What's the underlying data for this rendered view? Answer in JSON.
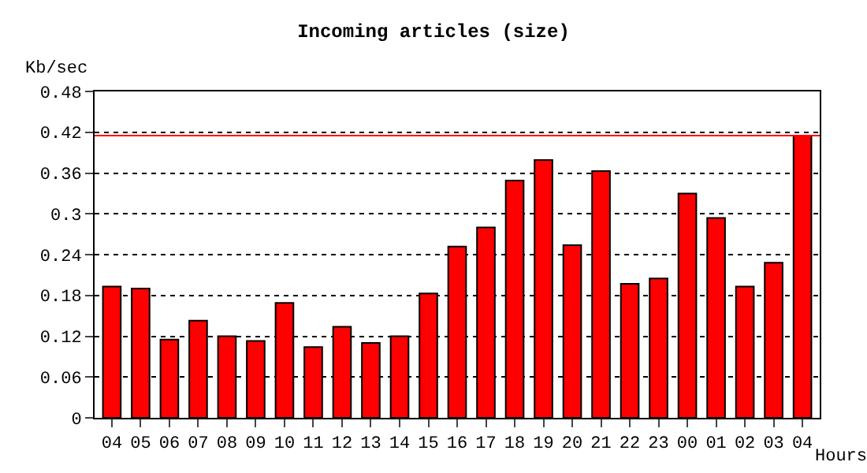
{
  "chart_data": {
    "type": "bar",
    "title": "Incoming articles (size)",
    "xlabel": "Hours",
    "ylabel": "Kb/sec",
    "categories": [
      "04",
      "05",
      "06",
      "07",
      "08",
      "09",
      "10",
      "11",
      "12",
      "13",
      "14",
      "15",
      "16",
      "17",
      "18",
      "19",
      "20",
      "21",
      "22",
      "23",
      "00",
      "01",
      "02",
      "03",
      "04"
    ],
    "series": [
      {
        "color": "#ff0000",
        "values": [
          0.193,
          0.19,
          0.115,
          0.143,
          0.12,
          0.113,
          0.169,
          0.104,
          0.134,
          0.11,
          0.12,
          0.183,
          0.252,
          0.28,
          0.349,
          0.379,
          0.254,
          0.363,
          0.197,
          0.205,
          0.33,
          0.294,
          0.193,
          0.228,
          0.415
        ]
      }
    ],
    "ylim": [
      0,
      0.48
    ],
    "yticks": [
      {
        "value": 0,
        "label": "0"
      },
      {
        "value": 0.06,
        "label": "0.06"
      },
      {
        "value": 0.12,
        "label": "0.12"
      },
      {
        "value": 0.18,
        "label": "0.18"
      },
      {
        "value": 0.24,
        "label": "0.24"
      },
      {
        "value": 0.3,
        "label": "0.3"
      },
      {
        "value": 0.36,
        "label": "0.36"
      },
      {
        "value": 0.42,
        "label": "0.42"
      },
      {
        "value": 0.48,
        "label": "0.48"
      }
    ],
    "grid": "y",
    "line_style": "dotted",
    "ref_lines": [
      {
        "axis": "y",
        "value": 0.415,
        "color": "#ff0000"
      }
    ]
  }
}
